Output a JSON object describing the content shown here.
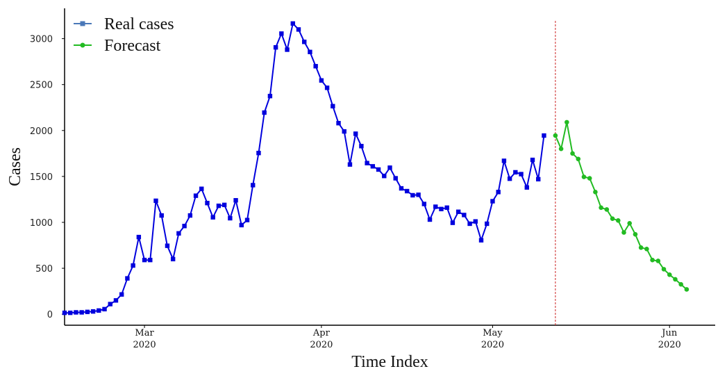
{
  "chart_data": {
    "type": "line",
    "xlabel": "Time Index",
    "ylabel": "Cases",
    "xrange": [
      "2020-02-16",
      "2020-06-09"
    ],
    "ylim": [
      -120,
      3330
    ],
    "yticks": [
      0,
      500,
      1000,
      1500,
      2000,
      2500,
      3000
    ],
    "xticks": [
      {
        "date": "2020-03-01",
        "month": "Mar",
        "year": "2020"
      },
      {
        "date": "2020-04-01",
        "month": "Apr",
        "year": "2020"
      },
      {
        "date": "2020-05-01",
        "month": "May",
        "year": "2020"
      },
      {
        "date": "2020-06-01",
        "month": "Jun",
        "year": "2020"
      }
    ],
    "forecast_start": "2020-05-12",
    "grid": false,
    "legend_position": "top-left",
    "series": [
      {
        "name": "Real cases",
        "color": "#0000dd",
        "legend_marker_color": "#4a78b8",
        "marker": "square",
        "x_start": "2020-02-16",
        "values": [
          15,
          15,
          20,
          20,
          25,
          30,
          40,
          55,
          110,
          150,
          215,
          390,
          530,
          840,
          590,
          590,
          1235,
          1075,
          745,
          600,
          880,
          960,
          1075,
          1290,
          1365,
          1210,
          1055,
          1180,
          1190,
          1045,
          1240,
          970,
          1025,
          1405,
          1755,
          2195,
          2375,
          2905,
          3055,
          2880,
          3165,
          3100,
          2965,
          2855,
          2700,
          2545,
          2465,
          2265,
          2080,
          1990,
          1630,
          1965,
          1830,
          1645,
          1610,
          1575,
          1505,
          1595,
          1480,
          1370,
          1340,
          1295,
          1300,
          1200,
          1030,
          1170,
          1145,
          1160,
          995,
          1115,
          1080,
          985,
          1010,
          805,
          985,
          1230,
          1330,
          1670,
          1475,
          1545,
          1525,
          1380,
          1680,
          1470,
          1945
        ]
      },
      {
        "name": "Forecast",
        "color": "#22bb22",
        "marker": "circle",
        "x_start": "2020-05-12",
        "values": [
          1945,
          1800,
          2090,
          1750,
          1690,
          1495,
          1480,
          1330,
          1160,
          1140,
          1040,
          1020,
          890,
          990,
          870,
          725,
          710,
          590,
          580,
          490,
          430,
          380,
          325,
          270
        ]
      }
    ]
  }
}
